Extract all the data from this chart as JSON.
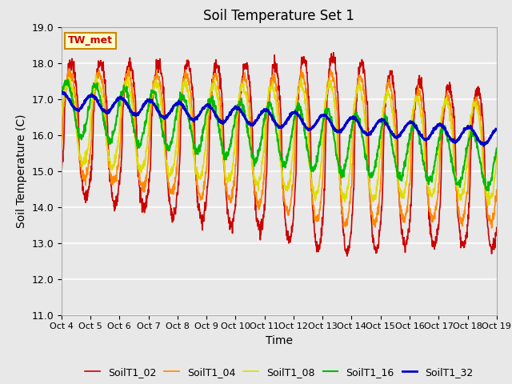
{
  "title": "Soil Temperature Set 1",
  "xlabel": "Time",
  "ylabel": "Soil Temperature (C)",
  "ylim": [
    11.0,
    19.0
  ],
  "yticks": [
    11.0,
    12.0,
    13.0,
    14.0,
    15.0,
    16.0,
    17.0,
    18.0,
    19.0
  ],
  "xtick_labels": [
    "Oct 4",
    "Oct 5",
    "Oct 6",
    "Oct 7",
    "Oct 8",
    "Oct 9",
    "Oct 10",
    "Oct 11",
    "Oct 12",
    "Oct 13",
    "Oct 14",
    "Oct 15",
    "Oct 16",
    "Oct 17",
    "Oct 18",
    "Oct 19"
  ],
  "legend_labels": [
    "SoilT1_02",
    "SoilT1_04",
    "SoilT1_08",
    "SoilT1_16",
    "SoilT1_32"
  ],
  "colors": [
    "#cc0000",
    "#ff8800",
    "#dddd00",
    "#00bb00",
    "#0000cc"
  ],
  "linewidths": [
    1.2,
    1.2,
    1.2,
    1.5,
    2.0
  ],
  "annotation_text": "TW_met",
  "annotation_color": "#cc0000",
  "annotation_bg": "#ffffcc",
  "annotation_edge": "#cc8800",
  "fig_facecolor": "#e8e8e8",
  "plot_facecolor": "#e8e8e8",
  "grid_color": "#ffffff"
}
